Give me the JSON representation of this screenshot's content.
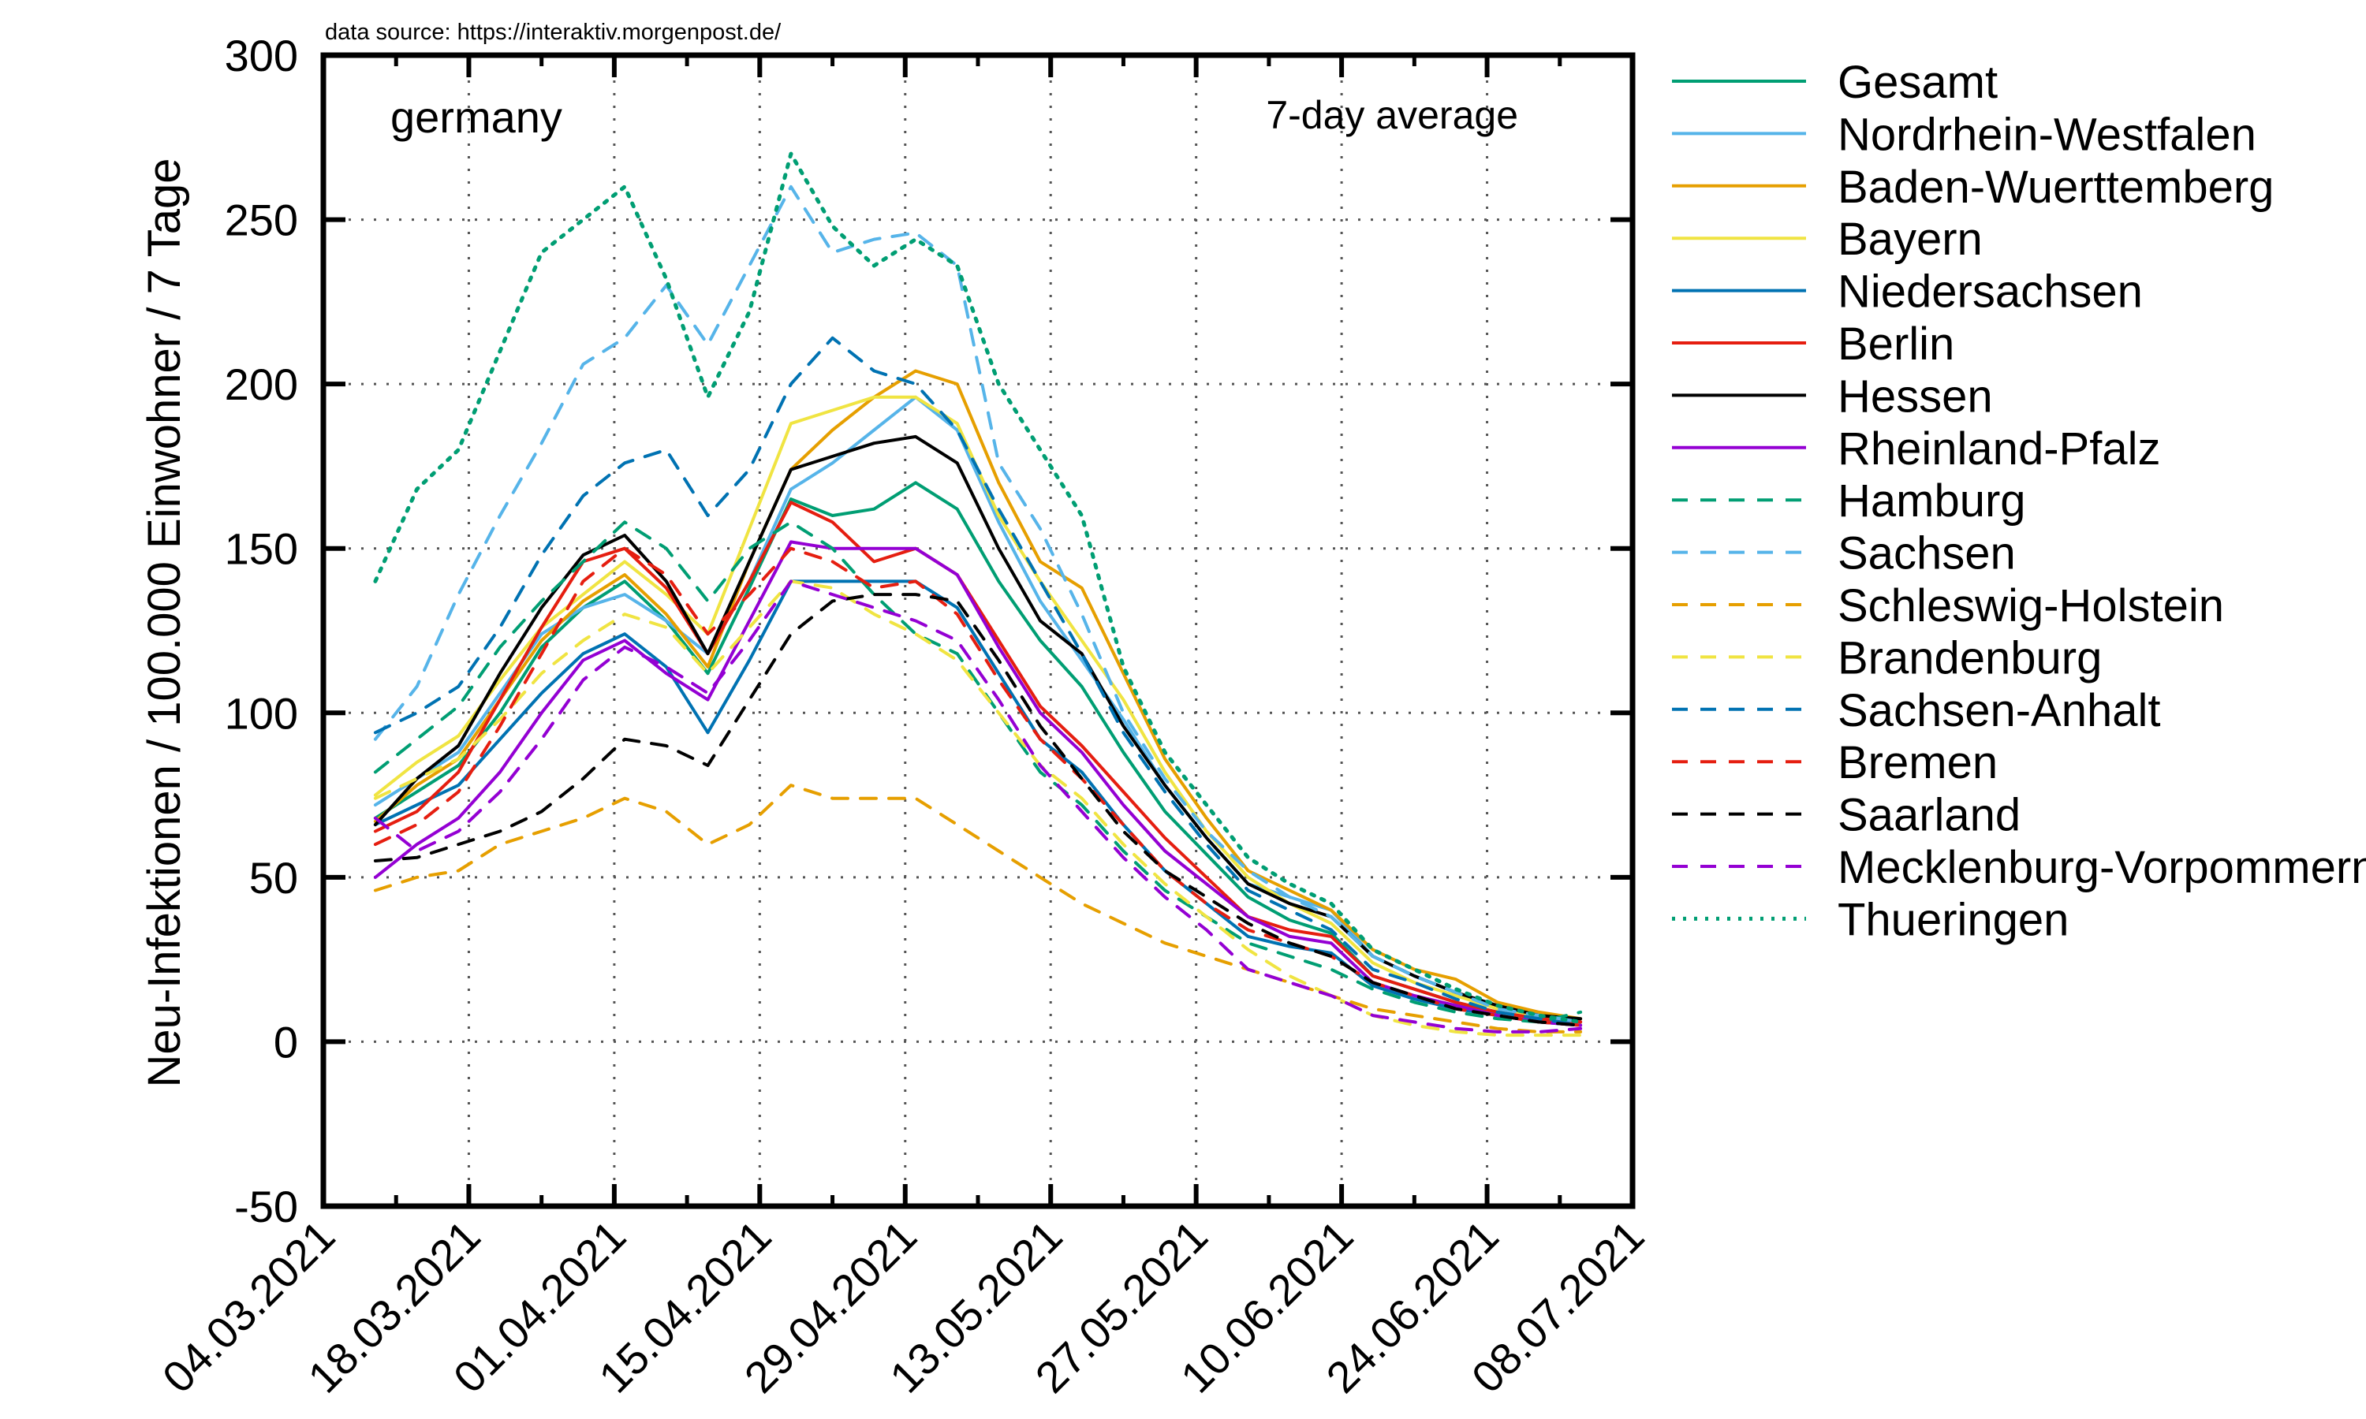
{
  "chart_data": {
    "type": "line",
    "source": "data source: https://interaktiv.morgenpost.de/",
    "annotation_left": "germany",
    "annotation_right": "7-day average",
    "ylabel": "Neu-Infektionen / 100.000 Einwohner / 7 Tage",
    "xlabel": "",
    "ylim": [
      -50,
      300
    ],
    "xlim": [
      "2021-03-04",
      "2021-07-08"
    ],
    "yticks": [
      -50,
      0,
      50,
      100,
      150,
      200,
      250,
      300
    ],
    "xticks": [
      "04.03.2021",
      "18.03.2021",
      "01.04.2021",
      "15.04.2021",
      "29.04.2021",
      "13.05.2021",
      "27.05.2021",
      "10.06.2021",
      "24.06.2021",
      "08.07.2021"
    ],
    "grid": true,
    "legend_position": "right-outside",
    "x": [
      "2021-03-09",
      "2021-03-13",
      "2021-03-17",
      "2021-03-21",
      "2021-03-25",
      "2021-03-29",
      "2021-04-02",
      "2021-04-06",
      "2021-04-10",
      "2021-04-14",
      "2021-04-18",
      "2021-04-22",
      "2021-04-26",
      "2021-04-30",
      "2021-05-04",
      "2021-05-08",
      "2021-05-12",
      "2021-05-16",
      "2021-05-20",
      "2021-05-24",
      "2021-05-28",
      "2021-06-01",
      "2021-06-05",
      "2021-06-09",
      "2021-06-13",
      "2021-06-17",
      "2021-06-21",
      "2021-06-25",
      "2021-06-29",
      "2021-07-03"
    ],
    "series": [
      {
        "name": "Gesamt",
        "color": "#009e73",
        "dash": "solid",
        "values": [
          68,
          76,
          84,
          100,
          120,
          132,
          140,
          128,
          112,
          138,
          165,
          160,
          162,
          170,
          162,
          140,
          122,
          108,
          88,
          70,
          57,
          44,
          37,
          33,
          20,
          16,
          12,
          9,
          7,
          6
        ]
      },
      {
        "name": "Nordrhein-Westfalen",
        "color": "#56b4e9",
        "dash": "solid",
        "values": [
          72,
          80,
          88,
          106,
          124,
          132,
          136,
          128,
          118,
          140,
          168,
          176,
          186,
          196,
          186,
          158,
          134,
          116,
          98,
          78,
          62,
          48,
          44,
          40,
          26,
          20,
          15,
          10,
          8,
          6
        ]
      },
      {
        "name": "Baden-Wuerttemberg",
        "color": "#e69f00",
        "dash": "solid",
        "values": [
          67,
          78,
          86,
          104,
          122,
          134,
          142,
          130,
          114,
          146,
          174,
          186,
          196,
          204,
          200,
          170,
          146,
          138,
          112,
          86,
          68,
          52,
          46,
          40,
          28,
          22,
          19,
          12,
          9,
          7
        ]
      },
      {
        "name": "Bayern",
        "color": "#f0e442",
        "dash": "solid",
        "values": [
          75,
          85,
          93,
          110,
          126,
          136,
          146,
          136,
          124,
          156,
          188,
          192,
          196,
          196,
          188,
          160,
          140,
          122,
          104,
          82,
          64,
          50,
          42,
          36,
          24,
          18,
          14,
          10,
          8,
          6
        ]
      },
      {
        "name": "Niedersachsen",
        "color": "#0072b2",
        "dash": "solid",
        "values": [
          66,
          72,
          78,
          92,
          106,
          118,
          124,
          114,
          94,
          116,
          140,
          140,
          140,
          140,
          132,
          112,
          92,
          82,
          66,
          52,
          42,
          32,
          29,
          27,
          17,
          13,
          10,
          8,
          6,
          5
        ]
      },
      {
        "name": "Berlin",
        "color": "#e51e10",
        "dash": "solid",
        "values": [
          64,
          70,
          82,
          104,
          126,
          146,
          150,
          138,
          118,
          140,
          164,
          158,
          146,
          150,
          142,
          122,
          102,
          90,
          76,
          62,
          50,
          38,
          34,
          32,
          20,
          16,
          12,
          9,
          7,
          6
        ]
      },
      {
        "name": "Hessen",
        "color": "#000000",
        "dash": "solid",
        "values": [
          66,
          80,
          90,
          112,
          132,
          148,
          154,
          140,
          118,
          146,
          174,
          178,
          182,
          184,
          176,
          150,
          128,
          118,
          96,
          78,
          62,
          48,
          42,
          38,
          26,
          20,
          15,
          11,
          8,
          7
        ]
      },
      {
        "name": "Rheinland-Pfalz",
        "color": "#9400d3",
        "dash": "solid",
        "values": [
          50,
          60,
          68,
          82,
          100,
          116,
          122,
          112,
          104,
          128,
          152,
          150,
          150,
          150,
          142,
          120,
          100,
          88,
          72,
          58,
          48,
          38,
          32,
          30,
          18,
          14,
          11,
          8,
          6,
          5
        ]
      },
      {
        "name": "Hamburg",
        "color": "#009e73",
        "dash": "dashed",
        "values": [
          82,
          92,
          102,
          120,
          134,
          146,
          158,
          150,
          134,
          150,
          158,
          150,
          136,
          124,
          118,
          100,
          82,
          72,
          58,
          46,
          38,
          30,
          26,
          22,
          16,
          12,
          9,
          7,
          6,
          9
        ]
      },
      {
        "name": "Sachsen",
        "color": "#56b4e9",
        "dash": "dashed",
        "values": [
          92,
          108,
          136,
          160,
          182,
          206,
          214,
          230,
          212,
          236,
          260,
          240,
          244,
          246,
          236,
          176,
          156,
          130,
          100,
          80,
          64,
          52,
          44,
          38,
          26,
          20,
          15,
          10,
          8,
          6
        ]
      },
      {
        "name": "Schleswig-Holstein",
        "color": "#e69f00",
        "dash": "dashed",
        "values": [
          46,
          50,
          52,
          60,
          64,
          68,
          74,
          70,
          60,
          66,
          78,
          74,
          74,
          74,
          66,
          58,
          50,
          42,
          36,
          30,
          26,
          22,
          18,
          14,
          10,
          8,
          6,
          4,
          3,
          3
        ]
      },
      {
        "name": "Brandenburg",
        "color": "#f0e442",
        "dash": "dashed",
        "values": [
          74,
          80,
          86,
          98,
          112,
          122,
          130,
          126,
          112,
          126,
          140,
          138,
          130,
          124,
          116,
          100,
          84,
          74,
          60,
          48,
          38,
          28,
          20,
          14,
          8,
          5,
          3,
          2,
          2,
          2
        ]
      },
      {
        "name": "Sachsen-Anhalt",
        "color": "#0072b2",
        "dash": "dashed",
        "values": [
          94,
          100,
          108,
          126,
          148,
          166,
          176,
          180,
          160,
          174,
          200,
          214,
          204,
          200,
          186,
          162,
          140,
          118,
          94,
          76,
          60,
          46,
          40,
          34,
          22,
          18,
          13,
          9,
          7,
          5
        ]
      },
      {
        "name": "Bremen",
        "color": "#e51e10",
        "dash": "dashed",
        "values": [
          60,
          66,
          76,
          96,
          118,
          140,
          150,
          142,
          124,
          136,
          150,
          146,
          138,
          140,
          130,
          110,
          92,
          80,
          66,
          52,
          42,
          34,
          30,
          26,
          18,
          14,
          10,
          8,
          6,
          5
        ]
      },
      {
        "name": "Saarland",
        "color": "#000000",
        "dash": "dashed",
        "values": [
          55,
          56,
          60,
          64,
          70,
          80,
          92,
          90,
          84,
          104,
          124,
          134,
          136,
          136,
          134,
          116,
          96,
          80,
          64,
          52,
          44,
          36,
          30,
          26,
          18,
          14,
          10,
          8,
          6,
          5
        ]
      },
      {
        "name": "Mecklenburg-Vorpommern",
        "color": "#9400d3",
        "dash": "dashed",
        "values": [
          68,
          58,
          64,
          76,
          92,
          110,
          120,
          114,
          106,
          122,
          140,
          136,
          132,
          128,
          122,
          104,
          84,
          70,
          56,
          44,
          34,
          22,
          18,
          14,
          8,
          6,
          4,
          3,
          3,
          4
        ]
      },
      {
        "name": "Thueringen",
        "color": "#009e73",
        "dash": "dotted",
        "values": [
          140,
          168,
          180,
          210,
          240,
          250,
          260,
          232,
          196,
          222,
          270,
          248,
          236,
          244,
          236,
          200,
          180,
          160,
          114,
          88,
          72,
          56,
          48,
          42,
          28,
          22,
          16,
          11,
          8,
          6
        ]
      }
    ]
  }
}
